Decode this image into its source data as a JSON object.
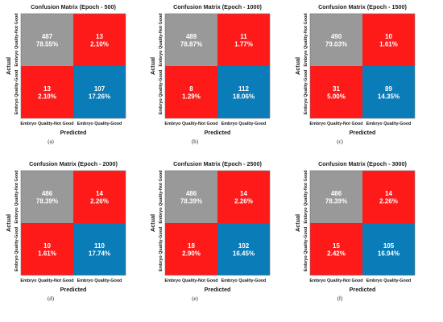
{
  "colors": {
    "correct_negative": "#999999",
    "error": "#ff1a1a",
    "correct_positive": "#0a7cb8",
    "border": "#777777",
    "text_on_cell": "#ffffff"
  },
  "chart_data": [
    {
      "type": "heatmap",
      "title": "Confusion Matrix (Epoch - 500)",
      "xlabel": "Predicted",
      "ylabel": "Actual",
      "x_categories": [
        "Embryo Quality-Not Good",
        "Embryo Quality-Good"
      ],
      "y_categories": [
        "Embryo Quality-Not Good",
        "Embryo Quality-Good"
      ],
      "counts": [
        [
          487,
          13
        ],
        [
          13,
          107
        ]
      ],
      "percents": [
        [
          "78.55%",
          "2.10%"
        ],
        [
          "2.10%",
          "17.26%"
        ]
      ],
      "caption": "(a)"
    },
    {
      "type": "heatmap",
      "title": "Confusion Matrix (Epoch - 1000)",
      "xlabel": "Predicted",
      "ylabel": "Actual",
      "x_categories": [
        "Embryo Quality-Not Good",
        "Embryo Quality-Good"
      ],
      "y_categories": [
        "Embryo Quality-Not Good",
        "Embryo Quality-Good"
      ],
      "counts": [
        [
          489,
          11
        ],
        [
          8,
          112
        ]
      ],
      "percents": [
        [
          "78.87%",
          "1.77%"
        ],
        [
          "1.29%",
          "18.06%"
        ]
      ],
      "caption": "(b)"
    },
    {
      "type": "heatmap",
      "title": "Confusion Matrix (Epoch - 1500)",
      "xlabel": "Predicted",
      "ylabel": "Actual",
      "x_categories": [
        "Embryo Quality-Not Good",
        "Embryo Quality-Good"
      ],
      "y_categories": [
        "Embryo Quality-Not Good",
        "Embryo Quality-Good"
      ],
      "counts": [
        [
          490,
          10
        ],
        [
          31,
          89
        ]
      ],
      "percents": [
        [
          "79.03%",
          "1.61%"
        ],
        [
          "5.00%",
          "14.35%"
        ]
      ],
      "caption": "(c)"
    },
    {
      "type": "heatmap",
      "title": "Confusion Matrix (Epoch - 2000)",
      "xlabel": "Predicted",
      "ylabel": "Actual",
      "x_categories": [
        "Embryo Quality-Not Good",
        "Embryo Quality-Good"
      ],
      "y_categories": [
        "Embryo Quality-Not Good",
        "Embryo Quality-Good"
      ],
      "counts": [
        [
          486,
          14
        ],
        [
          10,
          110
        ]
      ],
      "percents": [
        [
          "78.39%",
          "2.26%"
        ],
        [
          "1.61%",
          "17.74%"
        ]
      ],
      "caption": "(d)"
    },
    {
      "type": "heatmap",
      "title": "Confusion Matrix (Epoch - 2500)",
      "xlabel": "Predicted",
      "ylabel": "Actual",
      "x_categories": [
        "Embryo Quality-Not Good",
        "Embryo Quality-Good"
      ],
      "y_categories": [
        "Embryo Quality-Not Good",
        "Embryo Quality-Good"
      ],
      "counts": [
        [
          486,
          14
        ],
        [
          18,
          102
        ]
      ],
      "percents": [
        [
          "78.39%",
          "2.26%"
        ],
        [
          "2.90%",
          "16.45%"
        ]
      ],
      "caption": "(e)"
    },
    {
      "type": "heatmap",
      "title": "Confusion Matrix (Epoch - 3000)",
      "xlabel": "Predicted",
      "ylabel": "Actual",
      "x_categories": [
        "Embryo Quality-Not Good",
        "Embryo Quality-Good"
      ],
      "y_categories": [
        "Embryo Quality-Not Good",
        "Embryo Quality-Good"
      ],
      "counts": [
        [
          486,
          14
        ],
        [
          15,
          105
        ]
      ],
      "percents": [
        [
          "78.39%",
          "2.26%"
        ],
        [
          "2.42%",
          "16.94%"
        ]
      ],
      "caption": "(f)"
    }
  ]
}
